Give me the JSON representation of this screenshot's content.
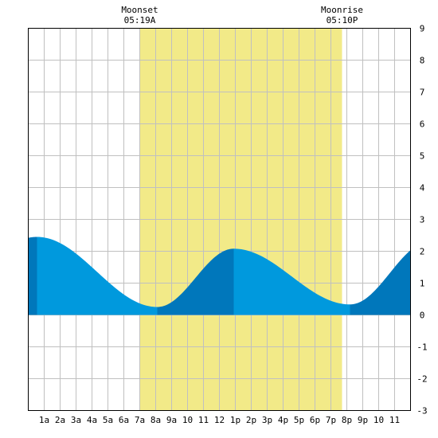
{
  "chart_data": {
    "type": "area",
    "title": "",
    "xlabel": "",
    "ylabel": "",
    "x_range_hours": [
      0,
      24
    ],
    "ylim": [
      -3,
      9
    ],
    "y_ticks": [
      -3,
      -2,
      -1,
      0,
      1,
      2,
      3,
      4,
      5,
      6,
      7,
      8,
      9
    ],
    "x_tick_labels": [
      "1a",
      "2a",
      "3a",
      "4a",
      "5a",
      "6a",
      "7a",
      "8a",
      "9a",
      "10",
      "11",
      "12",
      "1p",
      "2p",
      "3p",
      "4p",
      "5p",
      "6p",
      "7p",
      "8p",
      "9p",
      "10",
      "11"
    ],
    "grid": true,
    "daylight": {
      "start_hour": 7.0,
      "end_hour": 19.7,
      "color": "#f2ea88"
    },
    "annotations": [
      {
        "label": "Moonset",
        "time": "05:19A",
        "hour": 7.0
      },
      {
        "label": "Moonrise",
        "time": "05:10P",
        "hour": 19.7
      }
    ],
    "tide_extremes": [
      {
        "hour": 0.55,
        "height": 2.45,
        "kind": "high"
      },
      {
        "hour": 8.1,
        "height": 0.25,
        "kind": "low"
      },
      {
        "hour": 12.9,
        "height": 2.08,
        "kind": "high"
      },
      {
        "hour": 20.2,
        "height": 0.33,
        "kind": "low"
      },
      {
        "hour": 25.2,
        "height": 2.3,
        "kind": "high"
      }
    ],
    "colors": {
      "water": "#0099dd",
      "water_rising": "#0077bb",
      "grid": "#c0c0c0"
    }
  }
}
